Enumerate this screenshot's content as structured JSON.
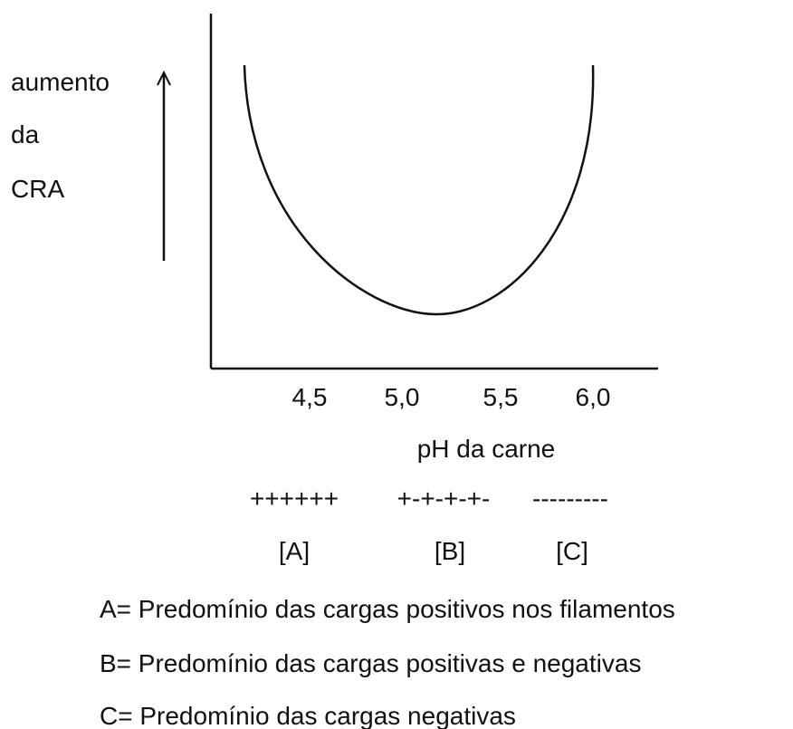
{
  "y_axis_label": [
    "aumento",
    "da",
    "CRA"
  ],
  "x_ticks": [
    "4,5",
    "5,0",
    "5,5",
    "6,0"
  ],
  "x_axis_label": "pH da carne",
  "charges": [
    "++++++",
    "+-+-+-+-",
    "---------"
  ],
  "regions": [
    "[A]",
    "[B]",
    "[C]"
  ],
  "legend": [
    "A= Predomínio das cargas positivos nos filamentos",
    "B= Predomínio das cargas positivas e negativas",
    "C= Predomínio das cargas negativas"
  ]
}
